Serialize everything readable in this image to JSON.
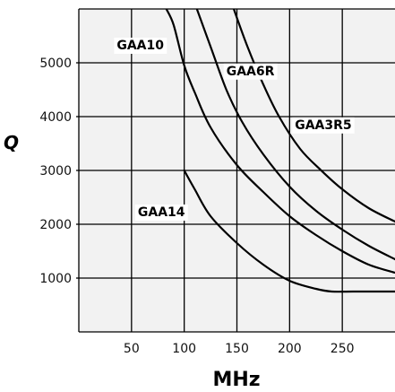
{
  "chart_data": {
    "type": "line",
    "title": "",
    "xlabel": "MHz",
    "ylabel": "Q",
    "xlim": [
      0,
      300
    ],
    "ylim": [
      0,
      6000
    ],
    "x_ticks": [
      50,
      100,
      150,
      200,
      250
    ],
    "y_ticks": [
      1000,
      2000,
      3000,
      4000,
      5000
    ],
    "x_tick_labels": [
      "50",
      "100",
      "150",
      "200",
      "250"
    ],
    "y_tick_labels": [
      "1000",
      "2000",
      "3000",
      "4000",
      "5000"
    ],
    "grid": true,
    "background": "#f2f2f2",
    "series": [
      {
        "name": "GAA10",
        "label_at": [
          36,
          5250
        ],
        "points": [
          [
            83,
            6000
          ],
          [
            90,
            5700
          ],
          [
            100,
            4950
          ],
          [
            110,
            4450
          ],
          [
            125,
            3800
          ],
          [
            150,
            3100
          ],
          [
            175,
            2600
          ],
          [
            200,
            2150
          ],
          [
            225,
            1800
          ],
          [
            250,
            1500
          ],
          [
            275,
            1250
          ],
          [
            300,
            1100
          ]
        ]
      },
      {
        "name": "GAA6R",
        "label_at": [
          140,
          4770
        ],
        "points": [
          [
            112,
            6000
          ],
          [
            125,
            5300
          ],
          [
            140,
            4500
          ],
          [
            155,
            3900
          ],
          [
            175,
            3300
          ],
          [
            200,
            2700
          ],
          [
            225,
            2250
          ],
          [
            250,
            1900
          ],
          [
            275,
            1600
          ],
          [
            300,
            1350
          ]
        ]
      },
      {
        "name": "GAA3R5",
        "label_at": [
          205,
          3770
        ],
        "points": [
          [
            147,
            6000
          ],
          [
            160,
            5300
          ],
          [
            175,
            4600
          ],
          [
            190,
            4000
          ],
          [
            210,
            3400
          ],
          [
            230,
            3000
          ],
          [
            250,
            2650
          ],
          [
            275,
            2300
          ],
          [
            300,
            2050
          ]
        ]
      },
      {
        "name": "GAA14",
        "label_at": [
          56,
          2150
        ],
        "points": [
          [
            100,
            3000
          ],
          [
            110,
            2650
          ],
          [
            125,
            2150
          ],
          [
            150,
            1650
          ],
          [
            175,
            1250
          ],
          [
            200,
            950
          ],
          [
            225,
            800
          ],
          [
            240,
            750
          ],
          [
            260,
            750
          ],
          [
            300,
            750
          ]
        ]
      }
    ]
  }
}
